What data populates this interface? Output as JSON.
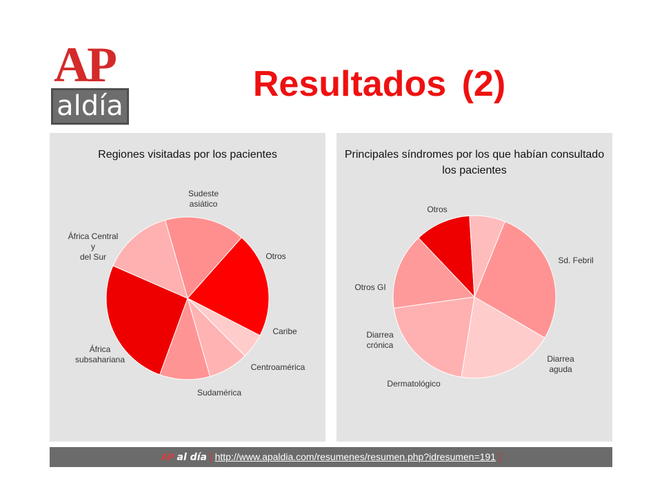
{
  "logo": {
    "top": "AP",
    "bottom": "aldía"
  },
  "title": "Resultados (2)",
  "footer": {
    "brand_ap": "AP",
    "brand_aldia": "al día",
    "bracket_open": "[",
    "url": "http://www.apaldia.com/resumenes/resumen.php?idresumen=191",
    "bracket_close": "]"
  },
  "chart_data": [
    {
      "type": "pie",
      "title": "Regiones visitadas por los pacientes",
      "slices": [
        {
          "label": "Sudeste\nasiático",
          "value": 16,
          "color": "#ff8f8f"
        },
        {
          "label": "Otros",
          "value": 21,
          "color": "#ff0000"
        },
        {
          "label": "Caribe",
          "value": 5,
          "color": "#ffcccc"
        },
        {
          "label": "Centroamérica",
          "value": 8,
          "color": "#ffb3b3"
        },
        {
          "label": "Sudamérica",
          "value": 10,
          "color": "#ff9494"
        },
        {
          "label": "África\nsubsahariana",
          "value": 26,
          "color": "#ee0000"
        },
        {
          "label": "África Central\ny\ndel Sur",
          "value": 14,
          "color": "#ffb0b0"
        }
      ]
    },
    {
      "type": "pie",
      "title": "Principales síndromes por los que habían consultado los pacientes",
      "slices": [
        {
          "label": "Otros",
          "value": 27,
          "color": "#ff9393"
        },
        {
          "label": "Sd. Febril",
          "value": 19,
          "color": "#ffcccc"
        },
        {
          "label": "Diarrea\naguda",
          "value": 20,
          "color": "#ffb0b0"
        },
        {
          "label": "Dermatológico",
          "value": 15,
          "color": "#ff9a9a"
        },
        {
          "label": "Diarrea\ncrónica",
          "value": 11,
          "color": "#ee0000"
        },
        {
          "label": "Otros GI",
          "value": 7,
          "color": "#ffbcbc"
        }
      ]
    }
  ]
}
